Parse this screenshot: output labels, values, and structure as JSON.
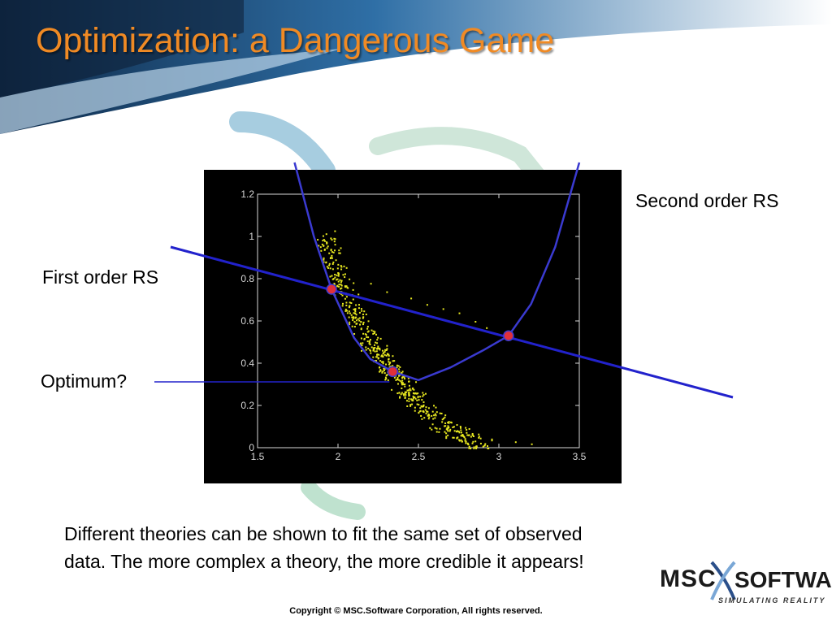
{
  "slide": {
    "title": "Optimization: a Dangerous Game",
    "colors": {
      "title": "#f08a24",
      "curves": "#2222cc",
      "points": "#e8e820",
      "markers": "#e0303a"
    }
  },
  "callouts": {
    "second_order": "Second order RS",
    "first_order": "First order RS",
    "optimum": "Optimum?"
  },
  "body_text": "Different theories can be shown to fit the same set of observed data. The more complex a theory, the more credible it appears!",
  "logo": {
    "msc": "MSC",
    "software": "SOFTWARE",
    "tagline": "SIMULATING REALITY"
  },
  "footer": {
    "copyright": "Copyright © MSC.Software Corporation, All rights reserved."
  },
  "chart_data": {
    "type": "scatter",
    "title": "",
    "xlabel": "",
    "ylabel": "",
    "xlim": [
      1.5,
      3.5
    ],
    "ylim": [
      0,
      1.2
    ],
    "x_ticks": [
      "1.5",
      "2",
      "2.5",
      "3",
      "3.5"
    ],
    "y_ticks": [
      "0",
      "0.2",
      "0.4",
      "0.6",
      "0.8",
      "1",
      "1.2"
    ],
    "grid": false,
    "series": [
      {
        "kind": "scatter-cloud",
        "band_center": [
          [
            1.92,
            1.0
          ],
          [
            2.0,
            0.82
          ],
          [
            2.1,
            0.64
          ],
          [
            2.2,
            0.5
          ],
          [
            2.3,
            0.4
          ],
          [
            2.4,
            0.3
          ],
          [
            2.5,
            0.22
          ],
          [
            2.6,
            0.14
          ],
          [
            2.7,
            0.08
          ],
          [
            2.8,
            0.04
          ],
          [
            2.95,
            0.01
          ]
        ],
        "sparse_points": [
          [
            2.2,
            0.78
          ],
          [
            2.3,
            0.74
          ],
          [
            2.45,
            0.71
          ],
          [
            2.55,
            0.68
          ],
          [
            2.65,
            0.66
          ],
          [
            2.75,
            0.64
          ],
          [
            2.85,
            0.6
          ],
          [
            2.92,
            0.57
          ],
          [
            3.1,
            0.03
          ],
          [
            3.2,
            0.02
          ]
        ]
      },
      {
        "kind": "line",
        "points": [
          [
            1.5,
            0.92
          ],
          [
            3.5,
            0.39
          ]
        ]
      },
      {
        "kind": "curve",
        "points": [
          [
            1.73,
            1.35
          ],
          [
            1.85,
            1.0
          ],
          [
            1.96,
            0.75
          ],
          [
            2.1,
            0.52
          ],
          [
            2.2,
            0.42
          ],
          [
            2.34,
            0.36
          ],
          [
            2.5,
            0.32
          ],
          [
            2.7,
            0.38
          ],
          [
            2.9,
            0.46
          ],
          [
            3.06,
            0.53
          ],
          [
            3.2,
            0.68
          ],
          [
            3.35,
            0.95
          ],
          [
            3.5,
            1.35
          ]
        ]
      },
      {
        "kind": "markers",
        "points": [
          [
            1.96,
            0.75
          ],
          [
            2.34,
            0.36
          ],
          [
            3.06,
            0.53
          ]
        ]
      }
    ]
  }
}
